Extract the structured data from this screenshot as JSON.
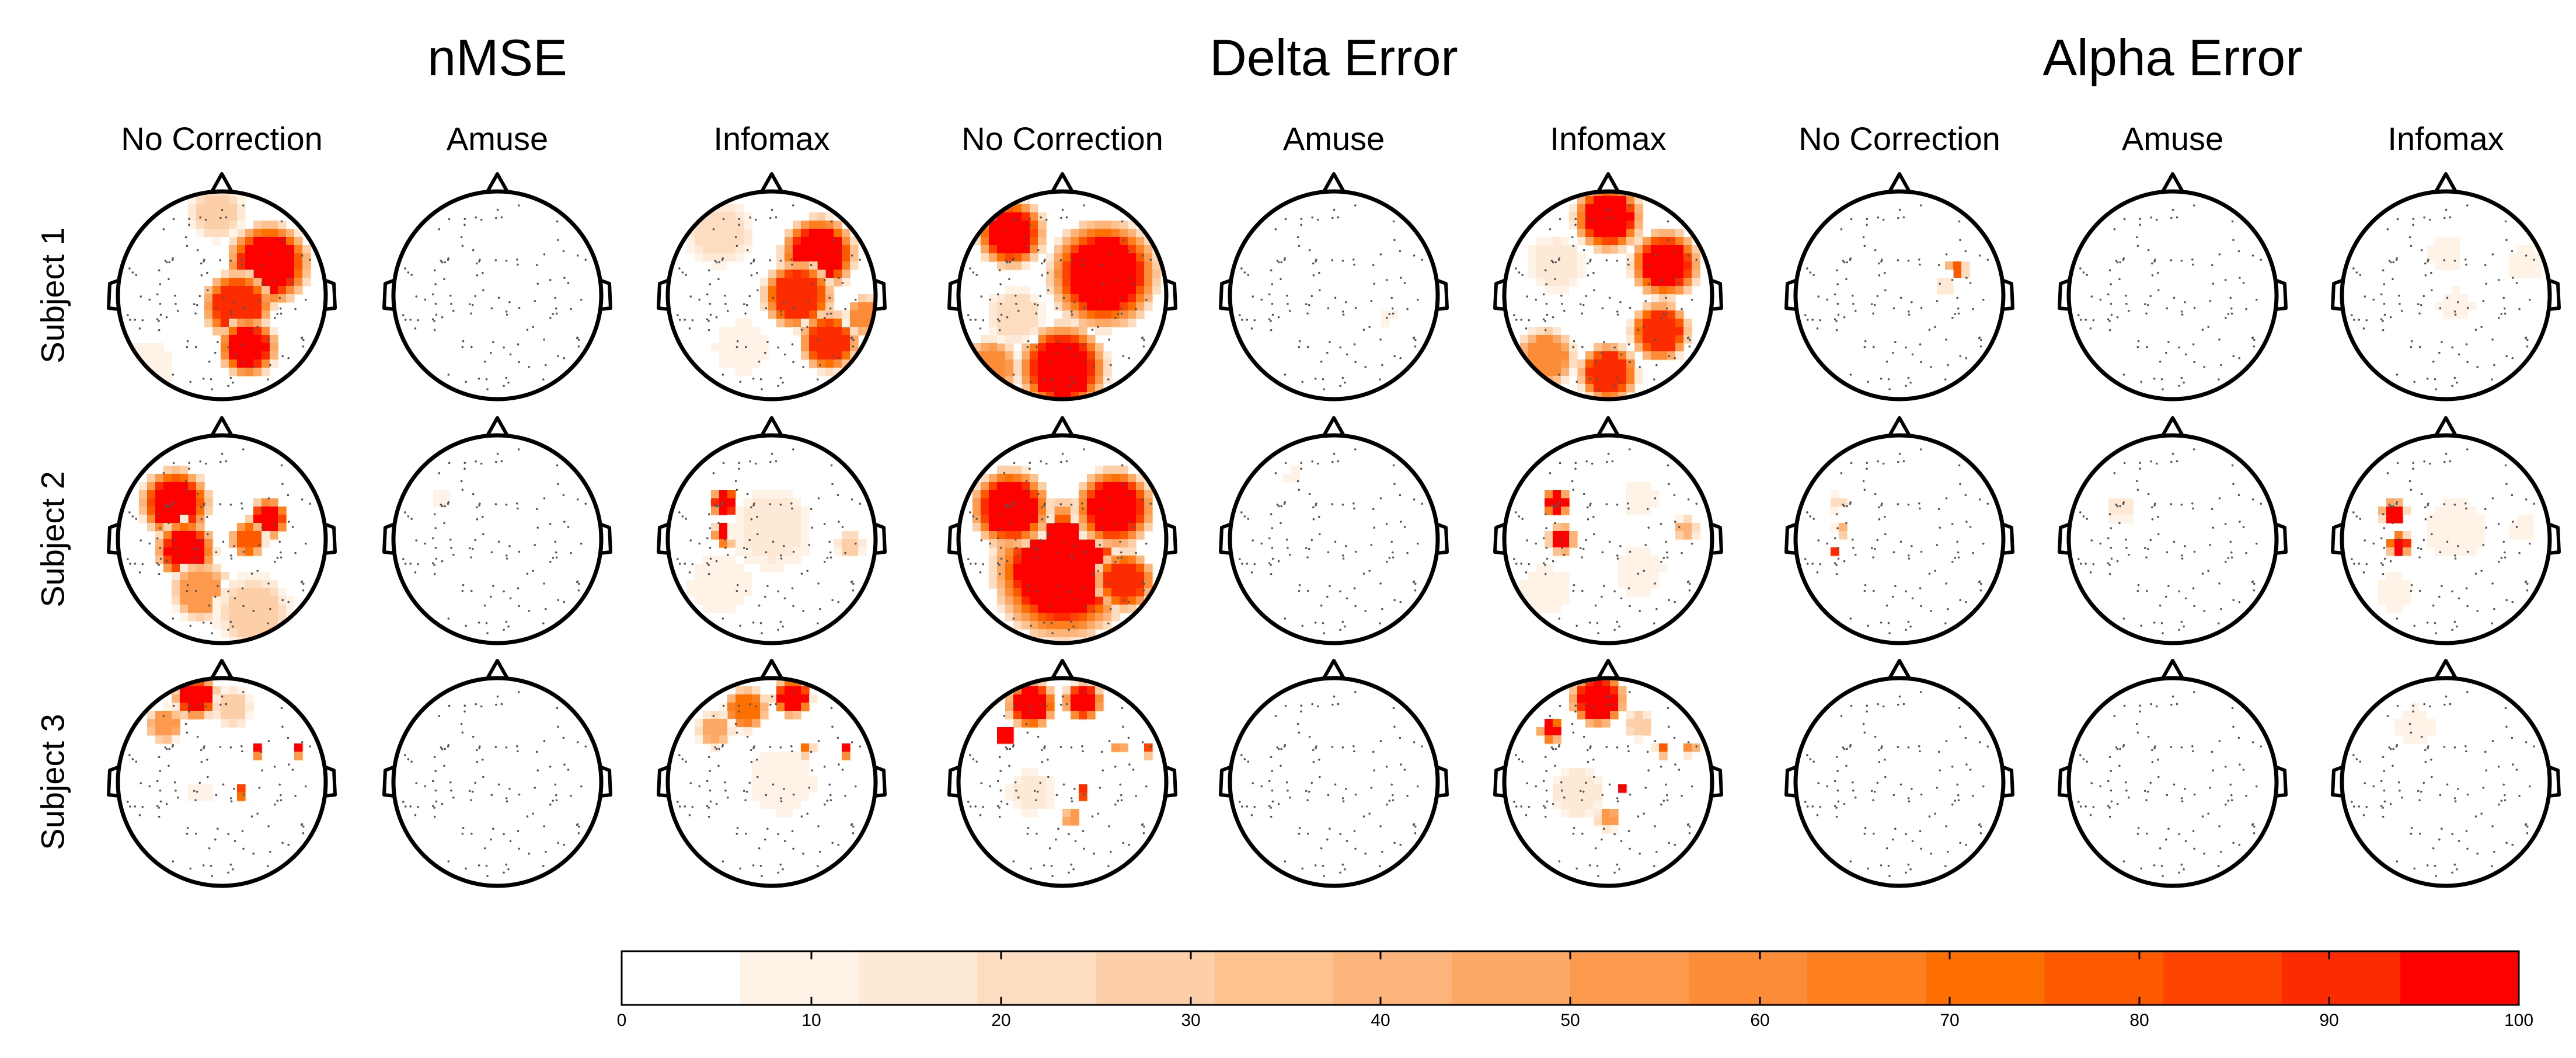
{
  "groups": [
    {
      "title": "nMSE",
      "columns": [
        "No Correction",
        "Amuse",
        "Infomax"
      ]
    },
    {
      "title": "Delta Error",
      "columns": [
        "No Correction",
        "Amuse",
        "Infomax"
      ]
    },
    {
      "title": "Alpha Error",
      "columns": [
        "No Correction",
        "Amuse",
        "Infomax"
      ]
    }
  ],
  "rows": [
    "Subject 1",
    "Subject 2",
    "Subject 3"
  ],
  "colorbar": {
    "min": 0,
    "max": 100,
    "ticks": [
      "0",
      "10",
      "20",
      "30",
      "40",
      "50",
      "60",
      "70",
      "80",
      "90",
      "100"
    ],
    "levels": [
      "#ffffff",
      "#fff3e8",
      "#fee8d6",
      "#fedcc0",
      "#fdcfa8",
      "#fdc28f",
      "#fdb47a",
      "#fda864",
      "#fd9a4e",
      "#fd8c38",
      "#fd7f20",
      "#fd6f00",
      "#fd5a00",
      "#fd4400",
      "#fd2c00",
      "#fd0000"
    ]
  },
  "chart_data": {
    "type": "heatmap",
    "scalp_maps": [
      {
        "row": "Subject 1",
        "metric": "nMSE",
        "method": "No Correction",
        "blobs": [
          {
            "u": 0.45,
            "v": -0.3,
            "r": 0.42,
            "val": 98
          },
          {
            "u": 0.15,
            "v": 0.1,
            "r": 0.35,
            "val": 90
          },
          {
            "u": 0.25,
            "v": 0.5,
            "r": 0.3,
            "val": 95
          },
          {
            "u": -0.05,
            "v": -0.8,
            "r": 0.3,
            "val": 25
          },
          {
            "u": -0.7,
            "v": 0.7,
            "r": 0.3,
            "val": 12
          }
        ]
      },
      {
        "row": "Subject 1",
        "metric": "nMSE",
        "method": "Amuse",
        "blobs": []
      },
      {
        "row": "Subject 1",
        "metric": "nMSE",
        "method": "Infomax",
        "blobs": [
          {
            "u": 0.45,
            "v": -0.4,
            "r": 0.38,
            "val": 96
          },
          {
            "u": 0.25,
            "v": 0.0,
            "r": 0.35,
            "val": 92
          },
          {
            "u": 0.55,
            "v": 0.45,
            "r": 0.3,
            "val": 88
          },
          {
            "u": 0.9,
            "v": 0.2,
            "r": 0.2,
            "val": 60
          },
          {
            "u": -0.5,
            "v": -0.6,
            "r": 0.35,
            "val": 22
          },
          {
            "u": -0.3,
            "v": 0.5,
            "r": 0.3,
            "val": 12
          }
        ]
      },
      {
        "row": "Subject 1",
        "metric": "Delta Error",
        "method": "No Correction",
        "blobs": [
          {
            "u": 0.4,
            "v": -0.2,
            "r": 0.55,
            "val": 99
          },
          {
            "u": 0.0,
            "v": 0.7,
            "r": 0.45,
            "val": 97
          },
          {
            "u": -0.5,
            "v": -0.6,
            "r": 0.35,
            "val": 96
          },
          {
            "u": -0.7,
            "v": 0.7,
            "r": 0.3,
            "val": 60
          },
          {
            "u": -0.45,
            "v": 0.2,
            "r": 0.3,
            "val": 22
          }
        ]
      },
      {
        "row": "Subject 1",
        "metric": "Delta Error",
        "method": "Amuse",
        "blobs": [
          {
            "u": 0.5,
            "v": 0.2,
            "r": 0.12,
            "val": 8
          }
        ]
      },
      {
        "row": "Subject 1",
        "metric": "Delta Error",
        "method": "Infomax",
        "blobs": [
          {
            "u": 0.0,
            "v": -0.75,
            "r": 0.35,
            "val": 97
          },
          {
            "u": 0.55,
            "v": -0.3,
            "r": 0.35,
            "val": 95
          },
          {
            "u": 0.5,
            "v": 0.35,
            "r": 0.3,
            "val": 92
          },
          {
            "u": 0.0,
            "v": 0.75,
            "r": 0.3,
            "val": 90
          },
          {
            "u": -0.6,
            "v": 0.6,
            "r": 0.3,
            "val": 60
          },
          {
            "u": -0.5,
            "v": -0.3,
            "r": 0.3,
            "val": 18
          }
        ]
      },
      {
        "row": "Subject 1",
        "metric": "Alpha Error",
        "method": "No Correction",
        "blobs": [
          {
            "u": 0.55,
            "v": -0.25,
            "r": 0.1,
            "val": 75
          },
          {
            "u": 0.45,
            "v": -0.1,
            "r": 0.12,
            "val": 18
          }
        ]
      },
      {
        "row": "Subject 1",
        "metric": "Alpha Error",
        "method": "Amuse",
        "blobs": []
      },
      {
        "row": "Subject 1",
        "metric": "Alpha Error",
        "method": "Infomax",
        "blobs": [
          {
            "u": 0.75,
            "v": -0.3,
            "r": 0.2,
            "val": 12
          },
          {
            "u": 0.0,
            "v": -0.4,
            "r": 0.25,
            "val": 7
          },
          {
            "u": 0.1,
            "v": 0.1,
            "r": 0.25,
            "val": 7
          }
        ]
      },
      {
        "row": "Subject 2",
        "metric": "nMSE",
        "method": "No Correction",
        "blobs": [
          {
            "u": -0.45,
            "v": -0.35,
            "r": 0.35,
            "val": 97
          },
          {
            "u": -0.35,
            "v": 0.1,
            "r": 0.3,
            "val": 95
          },
          {
            "u": 0.45,
            "v": -0.2,
            "r": 0.2,
            "val": 94
          },
          {
            "u": 0.25,
            "v": 0.0,
            "r": 0.18,
            "val": 80
          },
          {
            "u": -0.2,
            "v": 0.5,
            "r": 0.3,
            "val": 55
          },
          {
            "u": 0.3,
            "v": 0.7,
            "r": 0.4,
            "val": 25
          }
        ]
      },
      {
        "row": "Subject 2",
        "metric": "nMSE",
        "method": "Amuse",
        "blobs": [
          {
            "u": -0.55,
            "v": -0.4,
            "r": 0.12,
            "val": 10
          }
        ]
      },
      {
        "row": "Subject 2",
        "metric": "nMSE",
        "method": "Infomax",
        "blobs": [
          {
            "u": -0.45,
            "v": -0.35,
            "r": 0.15,
            "val": 99
          },
          {
            "u": -0.45,
            "v": -0.05,
            "r": 0.12,
            "val": 95
          },
          {
            "u": 0.0,
            "v": -0.1,
            "r": 0.45,
            "val": 15
          },
          {
            "u": 0.75,
            "v": 0.05,
            "r": 0.15,
            "val": 25
          },
          {
            "u": -0.5,
            "v": 0.45,
            "r": 0.35,
            "val": 12
          }
        ]
      },
      {
        "row": "Subject 2",
        "metric": "Delta Error",
        "method": "No Correction",
        "blobs": [
          {
            "u": 0.0,
            "v": 0.3,
            "r": 0.7,
            "val": 99
          },
          {
            "u": -0.5,
            "v": -0.3,
            "r": 0.4,
            "val": 98
          },
          {
            "u": 0.5,
            "v": -0.3,
            "r": 0.4,
            "val": 97
          },
          {
            "u": 0.6,
            "v": 0.4,
            "r": 0.3,
            "val": 88
          }
        ]
      },
      {
        "row": "Subject 2",
        "metric": "Delta Error",
        "method": "Amuse",
        "blobs": [
          {
            "u": -0.4,
            "v": -0.6,
            "r": 0.12,
            "val": 7
          }
        ]
      },
      {
        "row": "Subject 2",
        "metric": "Delta Error",
        "method": "Infomax",
        "blobs": [
          {
            "u": -0.5,
            "v": -0.35,
            "r": 0.14,
            "val": 99
          },
          {
            "u": -0.45,
            "v": 0.0,
            "r": 0.14,
            "val": 94
          },
          {
            "u": 0.75,
            "v": -0.1,
            "r": 0.12,
            "val": 40
          },
          {
            "u": 0.3,
            "v": -0.4,
            "r": 0.2,
            "val": 12
          },
          {
            "u": -0.6,
            "v": 0.5,
            "r": 0.3,
            "val": 12
          },
          {
            "u": 0.3,
            "v": 0.3,
            "r": 0.3,
            "val": 10
          }
        ]
      },
      {
        "row": "Subject 2",
        "metric": "Alpha Error",
        "method": "No Correction",
        "blobs": [
          {
            "u": -0.6,
            "v": -0.35,
            "r": 0.1,
            "val": 20
          },
          {
            "u": -0.55,
            "v": -0.1,
            "r": 0.08,
            "val": 40
          },
          {
            "u": -0.65,
            "v": 0.1,
            "r": 0.05,
            "val": 99
          }
        ]
      },
      {
        "row": "Subject 2",
        "metric": "Alpha Error",
        "method": "Amuse",
        "blobs": [
          {
            "u": -0.5,
            "v": -0.3,
            "r": 0.15,
            "val": 15
          }
        ]
      },
      {
        "row": "Subject 2",
        "metric": "Alpha Error",
        "method": "Infomax",
        "blobs": [
          {
            "u": -0.5,
            "v": -0.25,
            "r": 0.13,
            "val": 99
          },
          {
            "u": -0.45,
            "v": 0.05,
            "r": 0.12,
            "val": 96
          },
          {
            "u": 0.1,
            "v": -0.1,
            "r": 0.35,
            "val": 12
          },
          {
            "u": 0.75,
            "v": -0.1,
            "r": 0.15,
            "val": 12
          },
          {
            "u": -0.5,
            "v": 0.5,
            "r": 0.25,
            "val": 8
          }
        ]
      },
      {
        "row": "Subject 3",
        "metric": "nMSE",
        "method": "No Correction",
        "blobs": [
          {
            "u": -0.25,
            "v": -0.82,
            "r": 0.22,
            "val": 99
          },
          {
            "u": -0.55,
            "v": -0.55,
            "r": 0.18,
            "val": 55
          },
          {
            "u": 0.1,
            "v": -0.72,
            "r": 0.2,
            "val": 30
          },
          {
            "u": 0.35,
            "v": -0.3,
            "r": 0.06,
            "val": 99
          },
          {
            "u": 0.72,
            "v": -0.3,
            "r": 0.06,
            "val": 99
          },
          {
            "u": 0.2,
            "v": 0.1,
            "r": 0.06,
            "val": 99
          },
          {
            "u": -0.2,
            "v": 0.1,
            "r": 0.15,
            "val": 10
          }
        ]
      },
      {
        "row": "Subject 3",
        "metric": "nMSE",
        "method": "Amuse",
        "blobs": [
          {
            "u": 0.0,
            "v": 0.8,
            "r": 0.15,
            "val": 6
          }
        ]
      },
      {
        "row": "Subject 3",
        "metric": "nMSE",
        "method": "Infomax",
        "blobs": [
          {
            "u": 0.2,
            "v": -0.82,
            "r": 0.2,
            "val": 99
          },
          {
            "u": -0.25,
            "v": -0.7,
            "r": 0.22,
            "val": 70
          },
          {
            "u": -0.55,
            "v": -0.5,
            "r": 0.18,
            "val": 45
          },
          {
            "u": 0.35,
            "v": -0.3,
            "r": 0.06,
            "val": 99
          },
          {
            "u": 0.72,
            "v": -0.3,
            "r": 0.06,
            "val": 99
          },
          {
            "u": 0.15,
            "v": 0.1,
            "r": 0.06,
            "val": 99
          },
          {
            "u": 0.1,
            "v": 0.0,
            "r": 0.4,
            "val": 10
          }
        ]
      },
      {
        "row": "Subject 3",
        "metric": "Delta Error",
        "method": "No Correction",
        "blobs": [
          {
            "u": -0.3,
            "v": -0.75,
            "r": 0.25,
            "val": 99
          },
          {
            "u": 0.2,
            "v": -0.78,
            "r": 0.2,
            "val": 96
          },
          {
            "u": -0.55,
            "v": -0.45,
            "r": 0.12,
            "val": 99
          },
          {
            "u": 0.55,
            "v": -0.3,
            "r": 0.06,
            "val": 99
          },
          {
            "u": 0.8,
            "v": -0.3,
            "r": 0.06,
            "val": 99
          },
          {
            "u": 0.2,
            "v": 0.1,
            "r": 0.06,
            "val": 99
          },
          {
            "u": 0.1,
            "v": 0.35,
            "r": 0.1,
            "val": 55
          },
          {
            "u": -0.3,
            "v": 0.1,
            "r": 0.25,
            "val": 15
          }
        ]
      },
      {
        "row": "Subject 3",
        "metric": "Delta Error",
        "method": "Amuse",
        "blobs": [
          {
            "u": -0.3,
            "v": -0.1,
            "r": 0.1,
            "val": 6
          }
        ]
      },
      {
        "row": "Subject 3",
        "metric": "Delta Error",
        "method": "Infomax",
        "blobs": [
          {
            "u": -0.1,
            "v": -0.8,
            "r": 0.28,
            "val": 99
          },
          {
            "u": -0.55,
            "v": -0.5,
            "r": 0.12,
            "val": 99
          },
          {
            "u": 0.5,
            "v": -0.3,
            "r": 0.06,
            "val": 99
          },
          {
            "u": 0.8,
            "v": -0.3,
            "r": 0.06,
            "val": 99
          },
          {
            "u": 0.15,
            "v": 0.05,
            "r": 0.06,
            "val": 99
          },
          {
            "u": 0.0,
            "v": 0.35,
            "r": 0.12,
            "val": 50
          },
          {
            "u": 0.3,
            "v": -0.55,
            "r": 0.15,
            "val": 30
          },
          {
            "u": -0.3,
            "v": 0.1,
            "r": 0.3,
            "val": 15
          }
        ]
      },
      {
        "row": "Subject 3",
        "metric": "Alpha Error",
        "method": "No Correction",
        "blobs": []
      },
      {
        "row": "Subject 3",
        "metric": "Alpha Error",
        "method": "Amuse",
        "blobs": []
      },
      {
        "row": "Subject 3",
        "metric": "Alpha Error",
        "method": "Infomax",
        "blobs": [
          {
            "u": -0.3,
            "v": -0.55,
            "r": 0.25,
            "val": 8
          },
          {
            "u": 0.1,
            "v": 0.2,
            "r": 0.35,
            "val": 6
          }
        ]
      }
    ]
  }
}
